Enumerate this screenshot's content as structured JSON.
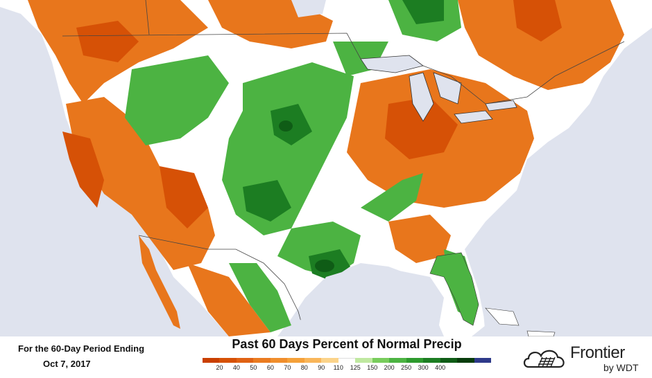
{
  "map": {
    "title": "Past 60 Days Percent of Normal Precip",
    "period_label": "For the 60-Day Period Ending",
    "period_date": "Oct 7, 2017",
    "legend": {
      "colors": [
        "#c93f00",
        "#d65106",
        "#e06214",
        "#ea7b20",
        "#f08e2c",
        "#f5a13a",
        "#f9b65a",
        "#fbd38a",
        "#ffffff",
        "#bfe8a0",
        "#78cc5c",
        "#4cb342",
        "#2e9a2e",
        "#1c7d22",
        "#0f5c16",
        "#083c0c",
        "#2e3a8a"
      ],
      "ticks": [
        "20",
        "40",
        "50",
        "60",
        "70",
        "80",
        "90",
        "110",
        "125",
        "150",
        "200",
        "250",
        "300",
        "400"
      ]
    },
    "colors": {
      "water": "#dfe3ee",
      "land_neutral": "#ffffff",
      "dry": "#e8761c",
      "very_dry": "#d65106",
      "wet": "#4cb342",
      "very_wet": "#1c7d22"
    }
  },
  "brand": {
    "name": "Frontier",
    "sub": "by WDT",
    "logo_icon": "cloud-grid-logo-icon"
  }
}
